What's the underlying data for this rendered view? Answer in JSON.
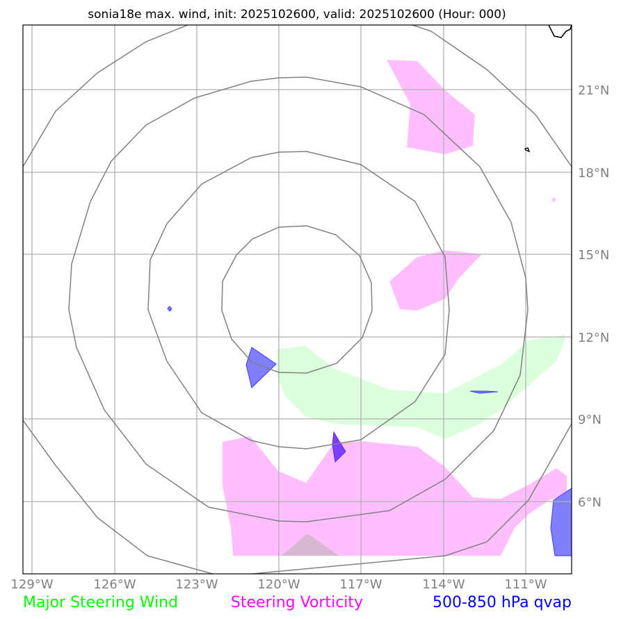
{
  "title": "sonia18e max. wind, init: 2025102600, valid: 2025102600 (Hour: 000)",
  "map": {
    "lon_ticks": [
      "129°W",
      "126°W",
      "123°W",
      "120°W",
      "117°W",
      "114°W",
      "111°W"
    ],
    "lat_ticks": [
      "21°N",
      "18°N",
      "15°N",
      "12°N",
      "9°N",
      "6°N"
    ],
    "colors": {
      "steering_wind": "#00ff00",
      "steering_vorticity": "#ff00ff",
      "qvap": "#0000ff",
      "wind_fill": "#dcffdc",
      "vorticity_fill": "#ffbfff",
      "qvap_fill": "#7f7fff"
    }
  },
  "legend": {
    "steering_wind": "Major Steering Wind",
    "steering_vorticity": "Steering Vorticity",
    "qvap": "500-850 hPa qvap"
  }
}
